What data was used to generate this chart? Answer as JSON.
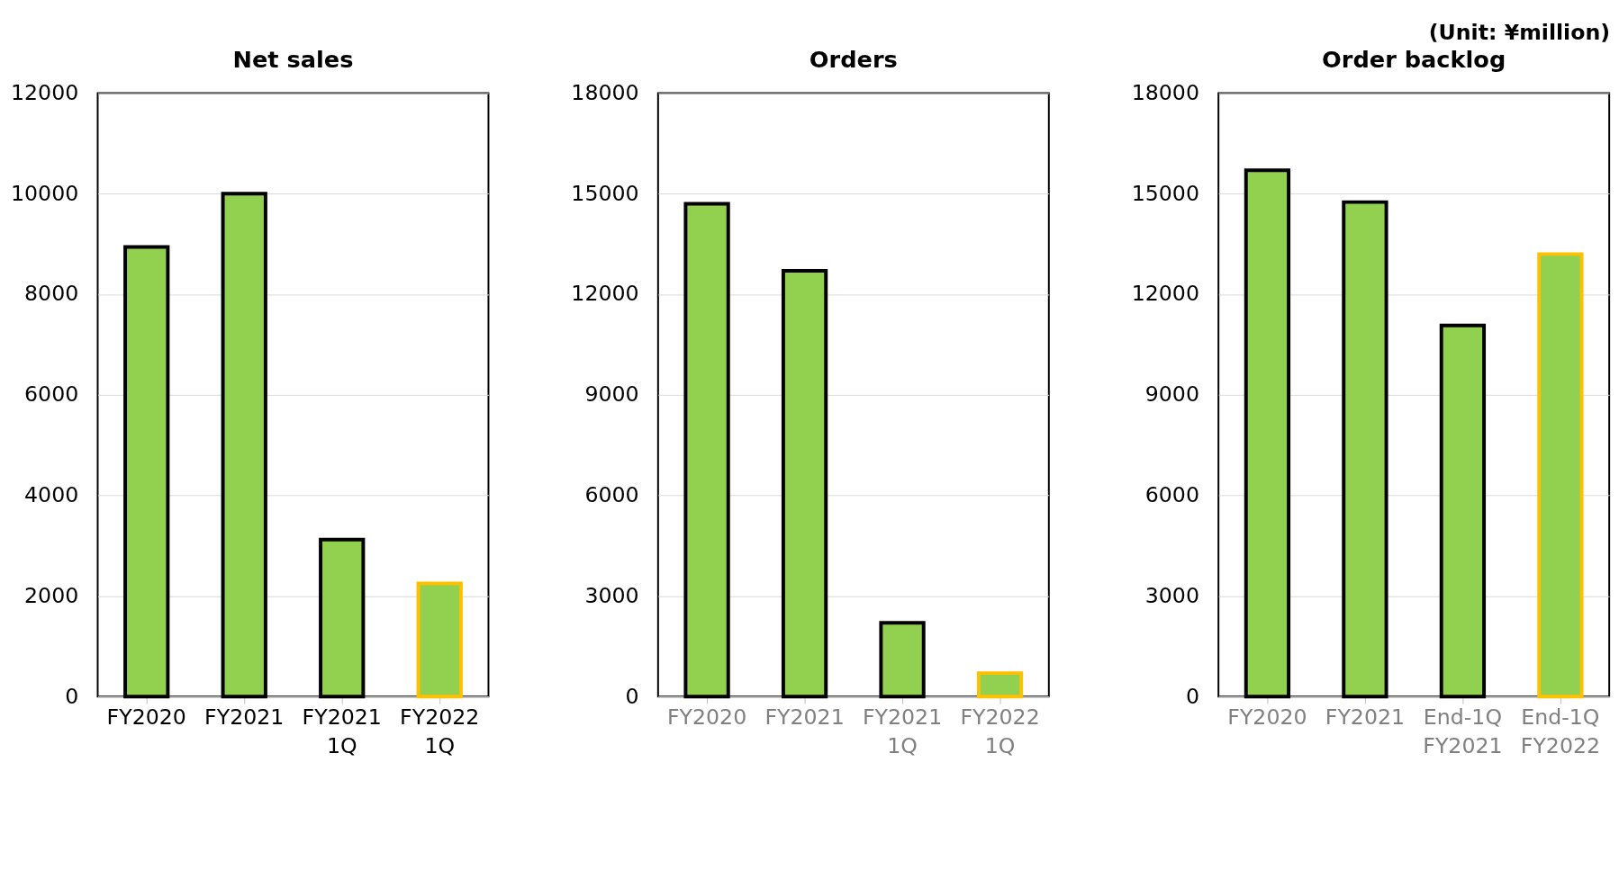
{
  "chart_data": [
    {
      "type": "bar",
      "title": "Net sales",
      "categories": [
        "FY2020",
        "FY2021",
        "FY2021 1Q",
        "FY2022 1Q"
      ],
      "values": [
        8940,
        10000,
        3120,
        2250
      ],
      "colors": [
        "#92d050",
        "#92d050",
        "#92d050",
        "#92d050"
      ],
      "ylim": [
        0,
        12000
      ],
      "yticks": [
        0,
        2000,
        4000,
        6000,
        8000,
        10000,
        12000
      ],
      "grid": "y"
    },
    {
      "type": "bar",
      "title": "Orders",
      "categories": [
        "FY2020",
        "FY2021",
        "FY2021 1Q",
        "FY2022 1Q"
      ],
      "values": [
        14700,
        12700,
        2200,
        700
      ],
      "colors": [
        "#92d050",
        "#92d050",
        "#92d050",
        "#92d050"
      ],
      "ylim": [
        0,
        18000
      ],
      "yticks": [
        0,
        3000,
        6000,
        9000,
        12000,
        15000,
        18000
      ],
      "grid": "y"
    },
    {
      "type": "bar",
      "title": "Order backlog",
      "categories": [
        "FY2020",
        "FY2021",
        "End-1Q FY2021",
        "End-1Q FY2022"
      ],
      "values": [
        15700,
        14750,
        11070,
        13200
      ],
      "colors": [
        "#92d050",
        "#92d050",
        "#92d050",
        "#92d050"
      ],
      "ylim": [
        0,
        18000
      ],
      "yticks": [
        0,
        3000,
        6000,
        9000,
        12000,
        15000,
        18000
      ],
      "grid": "y",
      "annotations": [
        "(Unit: ¥million)"
      ]
    }
  ]
}
